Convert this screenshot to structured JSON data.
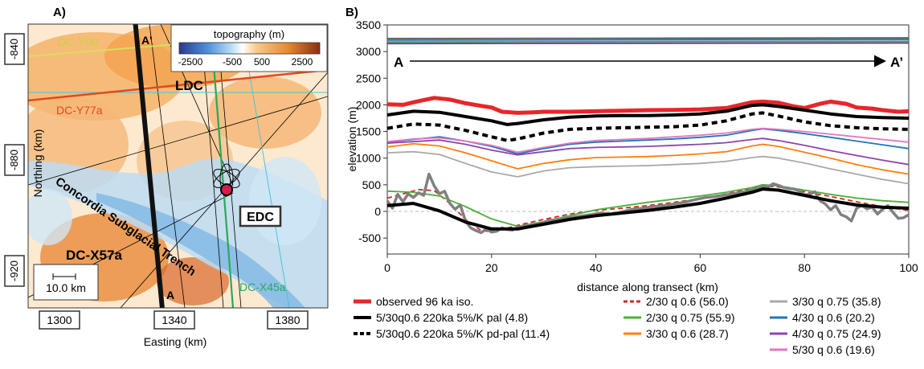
{
  "panel_a": {
    "label": "A)",
    "colorbar": {
      "title": "topography (m)",
      "ticks": [
        "-2500",
        "-500",
        "500",
        "2500"
      ],
      "colors": [
        "#2b3990",
        "#4a90d9",
        "#bfe0f5",
        "#ffffff",
        "#f7c98b",
        "#e8862c",
        "#8b2c10"
      ]
    },
    "northing_label": "Northing (km)",
    "northing_ticks": [
      "-840",
      "-880",
      "-920"
    ],
    "easting_label": "Easting (km)",
    "easting_ticks": [
      "1300",
      "1340",
      "1380"
    ],
    "scale_bar": "10.0 km",
    "labels": {
      "a_prime": "A'",
      "a": "A",
      "ldc": "LDC",
      "edc": "EDC",
      "dc_y77a": "DC-Y77a",
      "dc_y90": "DC-Y90",
      "dc_x57a": "DC-X57a",
      "dc_x45a": "DC-X45a",
      "trench": "Concordia Subglacial Trench"
    },
    "colors": {
      "transect": "#111111",
      "dc_y77a": "#e04a1f",
      "dc_y90": "#d6e05a",
      "dc_x45a": "#2aa85a",
      "cyan_line": "#4cc3d9",
      "edc_marker": "#d81b4a"
    }
  },
  "panel_b": {
    "label": "B)",
    "transect_start": "A",
    "transect_end": "A’"
  },
  "chart_data": {
    "type": "line",
    "xlabel": "distance along transect (km)",
    "ylabel": "elevation (m)",
    "xlim": [
      0,
      100
    ],
    "ylim": [
      -800,
      3500
    ],
    "xticks": [
      0,
      20,
      40,
      60,
      80,
      100
    ],
    "yticks": [
      -500,
      0,
      500,
      1000,
      1500,
      2000,
      2500,
      3000,
      3500
    ],
    "grid": false,
    "legend_position": "bottom",
    "series": [
      {
        "name": "observed 96 ka iso.",
        "color": "#e8262a",
        "width": 5,
        "dash": "",
        "x": [
          0,
          3,
          6,
          9,
          12,
          15,
          18,
          20,
          22,
          25,
          28,
          30,
          35,
          40,
          45,
          50,
          55,
          60,
          65,
          70,
          72,
          75,
          78,
          80,
          83,
          85,
          88,
          90,
          93,
          95,
          98,
          100
        ],
        "y": [
          2010,
          2000,
          2070,
          2130,
          2100,
          2030,
          1980,
          1950,
          1870,
          1850,
          1860,
          1870,
          1870,
          1880,
          1890,
          1900,
          1905,
          1915,
          1940,
          2050,
          2060,
          2040,
          1970,
          1940,
          2020,
          2060,
          2020,
          1950,
          1930,
          1900,
          1870,
          1880
        ]
      },
      {
        "name": "5/30q0.6 220ka 5%/K pal (4.8)",
        "color": "#000000",
        "width": 4,
        "dash": "",
        "x": [
          0,
          5,
          10,
          15,
          20,
          23,
          25,
          30,
          35,
          40,
          45,
          50,
          55,
          60,
          65,
          70,
          72,
          75,
          80,
          85,
          90,
          95,
          100
        ],
        "y": [
          1810,
          1880,
          1860,
          1780,
          1700,
          1630,
          1650,
          1720,
          1770,
          1790,
          1800,
          1800,
          1810,
          1830,
          1880,
          1990,
          2000,
          1970,
          1900,
          1830,
          1780,
          1760,
          1750
        ]
      },
      {
        "name": "5/30q0.6 220ka 5%/K pd-pal (11.4)",
        "color": "#000000",
        "width": 4,
        "dash": "7 5",
        "x": [
          0,
          5,
          10,
          15,
          20,
          23,
          25,
          30,
          35,
          40,
          45,
          50,
          55,
          60,
          65,
          70,
          72,
          75,
          80,
          85,
          90,
          95,
          100
        ],
        "y": [
          1560,
          1640,
          1620,
          1520,
          1400,
          1330,
          1360,
          1470,
          1540,
          1560,
          1570,
          1580,
          1590,
          1620,
          1700,
          1830,
          1850,
          1790,
          1680,
          1610,
          1570,
          1550,
          1540
        ]
      },
      {
        "name": "2/30 q 0.6 (56.0)",
        "color": "#d62728",
        "width": 1.8,
        "dash": "6 4",
        "x": [
          0,
          3,
          6,
          9,
          12,
          15,
          18,
          20,
          22,
          25,
          30,
          35,
          40,
          45,
          50,
          55,
          60,
          65,
          70,
          72,
          75,
          80,
          85,
          90,
          95,
          100
        ],
        "y": [
          250,
          330,
          410,
          390,
          150,
          -150,
          -360,
          -380,
          -340,
          -260,
          -150,
          -50,
          20,
          60,
          110,
          170,
          240,
          330,
          430,
          480,
          460,
          370,
          280,
          180,
          90,
          20
        ]
      },
      {
        "name": "2/30 q 0.75 (55.9)",
        "color": "#4caf3a",
        "width": 1.8,
        "dash": "",
        "x": [
          0,
          5,
          10,
          15,
          20,
          25,
          30,
          35,
          40,
          45,
          50,
          55,
          60,
          65,
          70,
          72,
          75,
          80,
          85,
          90,
          95,
          100
        ],
        "y": [
          380,
          360,
          290,
          90,
          -140,
          -280,
          -190,
          -80,
          30,
          100,
          170,
          230,
          290,
          360,
          450,
          500,
          480,
          400,
          320,
          250,
          200,
          170
        ]
      },
      {
        "name": "3/30 q 0.6 (28.7)",
        "color": "#ff7f0e",
        "width": 1.8,
        "dash": "",
        "x": [
          0,
          5,
          10,
          15,
          20,
          25,
          30,
          35,
          40,
          45,
          50,
          55,
          60,
          65,
          70,
          72,
          75,
          80,
          85,
          90,
          95,
          100
        ],
        "y": [
          1210,
          1270,
          1230,
          1100,
          950,
          800,
          900,
          970,
          1010,
          1020,
          1030,
          1050,
          1080,
          1120,
          1230,
          1260,
          1220,
          1110,
          1000,
          880,
          780,
          700
        ]
      },
      {
        "name": "3/30 q 0.75 (35.8)",
        "color": "#a9a9a9",
        "width": 1.8,
        "dash": "",
        "x": [
          0,
          5,
          10,
          15,
          20,
          25,
          30,
          35,
          40,
          45,
          50,
          55,
          60,
          65,
          70,
          72,
          75,
          80,
          85,
          90,
          95,
          100
        ],
        "y": [
          1100,
          1120,
          1070,
          900,
          740,
          650,
          760,
          820,
          840,
          850,
          860,
          880,
          900,
          940,
          1010,
          1030,
          1000,
          910,
          800,
          700,
          600,
          520
        ]
      },
      {
        "name": "4/30 q 0.6 (20.2)",
        "color": "#1f77b4",
        "width": 1.8,
        "dash": "",
        "x": [
          0,
          5,
          10,
          15,
          20,
          25,
          30,
          35,
          40,
          45,
          50,
          55,
          60,
          65,
          70,
          72,
          75,
          80,
          85,
          90,
          95,
          100
        ],
        "y": [
          1300,
          1350,
          1400,
          1320,
          1220,
          1080,
          1180,
          1260,
          1300,
          1320,
          1340,
          1360,
          1390,
          1430,
          1520,
          1550,
          1520,
          1460,
          1390,
          1320,
          1250,
          1180
        ]
      },
      {
        "name": "4/30 q 0.75 (24.9)",
        "color": "#8e44ad",
        "width": 1.8,
        "dash": "",
        "x": [
          0,
          5,
          10,
          15,
          20,
          25,
          30,
          35,
          40,
          45,
          50,
          55,
          60,
          65,
          70,
          72,
          75,
          80,
          85,
          90,
          95,
          100
        ],
        "y": [
          1280,
          1310,
          1340,
          1260,
          1150,
          1060,
          1120,
          1180,
          1200,
          1210,
          1220,
          1240,
          1260,
          1290,
          1350,
          1370,
          1330,
          1240,
          1140,
          1050,
          960,
          880
        ]
      },
      {
        "name": "5/30 q 0.6 (19.6)",
        "color": "#e377c2",
        "width": 1.8,
        "dash": "",
        "x": [
          0,
          5,
          10,
          15,
          20,
          25,
          30,
          35,
          40,
          45,
          50,
          55,
          60,
          65,
          70,
          72,
          75,
          80,
          85,
          90,
          95,
          100
        ],
        "y": [
          1310,
          1360,
          1380,
          1320,
          1240,
          1110,
          1200,
          1280,
          1330,
          1350,
          1370,
          1400,
          1430,
          1470,
          1540,
          1560,
          1540,
          1500,
          1450,
          1400,
          1350,
          1300
        ]
      },
      {
        "name": "",
        "color": "#808080",
        "width": 3.5,
        "dash": "",
        "x": [
          0,
          1,
          2,
          3,
          4,
          5,
          6,
          7,
          8,
          9,
          10,
          11,
          12,
          13,
          14,
          15,
          16,
          17,
          18,
          19,
          20,
          21,
          22,
          23,
          24,
          25,
          27,
          29,
          31,
          33,
          35,
          37,
          39,
          41,
          43,
          45,
          47,
          49,
          51,
          53,
          55,
          57,
          59,
          61,
          63,
          65,
          67,
          69,
          70,
          71,
          72,
          73,
          74,
          75,
          76,
          77,
          78,
          79,
          80,
          81,
          82,
          83,
          84,
          85,
          86,
          87,
          88,
          89,
          90,
          91,
          92,
          93,
          94,
          95,
          96,
          97,
          98,
          99,
          100
        ],
        "y": [
          200,
          60,
          320,
          180,
          330,
          260,
          350,
          300,
          700,
          480,
          330,
          380,
          150,
          40,
          120,
          -180,
          -310,
          -360,
          -400,
          -330,
          -390,
          -370,
          -310,
          -340,
          -350,
          -300,
          -270,
          -240,
          -170,
          -150,
          -120,
          -90,
          -60,
          -30,
          -50,
          -10,
          40,
          60,
          90,
          110,
          140,
          170,
          220,
          260,
          280,
          310,
          340,
          380,
          410,
          430,
          470,
          460,
          520,
          490,
          450,
          430,
          420,
          380,
          310,
          320,
          370,
          200,
          140,
          30,
          110,
          -60,
          -100,
          -180,
          60,
          110,
          50,
          80,
          -50,
          40,
          110,
          -20,
          -130,
          -120,
          -60
        ]
      },
      {
        "name": "",
        "color": "#000000",
        "width": 4,
        "dash": "",
        "x": [
          0,
          5,
          10,
          15,
          20,
          25,
          30,
          35,
          40,
          45,
          50,
          55,
          60,
          65,
          70,
          72,
          75,
          80,
          85,
          90,
          95,
          100
        ],
        "y": [
          110,
          150,
          10,
          -200,
          -330,
          -330,
          -240,
          -150,
          -80,
          -30,
          20,
          80,
          150,
          250,
          360,
          420,
          400,
          300,
          200,
          120,
          80,
          60
        ]
      },
      {
        "name": "",
        "color": "#6b2e8a",
        "width": 1.8,
        "dash": "",
        "x": [
          0,
          100
        ],
        "y": [
          3150,
          3160
        ]
      },
      {
        "name": "",
        "color": "#4c9a4a",
        "width": 1.8,
        "dash": "",
        "x": [
          0,
          100
        ],
        "y": [
          3180,
          3190
        ]
      },
      {
        "name": "",
        "color": "#1f77b4",
        "width": 1.8,
        "dash": "",
        "x": [
          0,
          100
        ],
        "y": [
          3215,
          3225
        ]
      },
      {
        "name": "",
        "color": "#555555",
        "width": 1.8,
        "dash": "",
        "x": [
          0,
          100
        ],
        "y": [
          3245,
          3255
        ]
      }
    ]
  }
}
